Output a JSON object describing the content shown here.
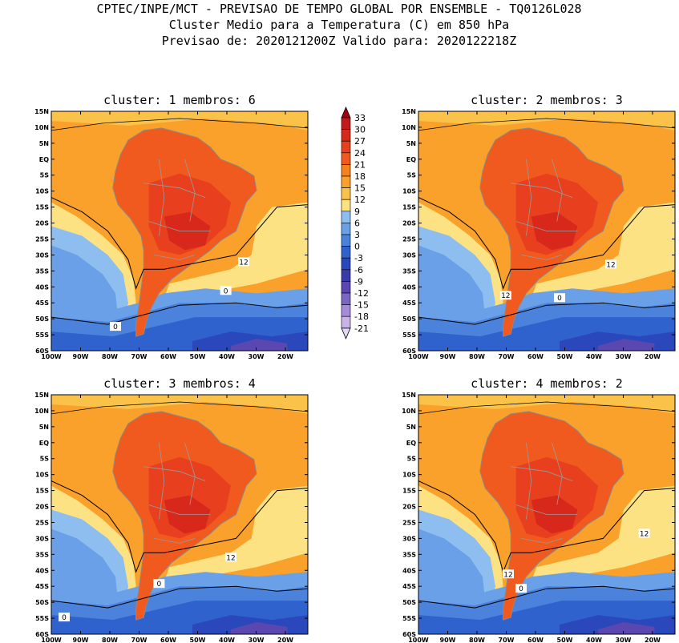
{
  "header": {
    "line1": "CPTEC/INPE/MCT - PREVISAO DE TEMPO GLOBAL POR ENSEMBLE - TQ0126L028",
    "line2": "Cluster Medio para a Temperatura (C) em 850 hPa",
    "line3": "Previsao de: 2020121200Z   Valido para: 2020122218Z"
  },
  "panels": [
    {
      "title": "cluster: 1   membros: 6",
      "contour_labels": [
        "12",
        "0",
        "0"
      ]
    },
    {
      "title": "cluster: 2   membros: 3",
      "contour_labels": [
        "12",
        "12",
        "0"
      ]
    },
    {
      "title": "cluster: 3   membros: 4",
      "contour_labels": [
        "12",
        "0",
        "0"
      ]
    },
    {
      "title": "cluster: 4   membros: 2",
      "contour_labels": [
        "12",
        "12",
        "0"
      ]
    }
  ],
  "axes": {
    "lat_labels": [
      "15N",
      "10N",
      "5N",
      "EQ",
      "5S",
      "10S",
      "15S",
      "20S",
      "25S",
      "30S",
      "35S",
      "40S",
      "45S",
      "50S",
      "55S",
      "60S"
    ],
    "lon_labels": [
      "100W",
      "90W",
      "80W",
      "70W",
      "60W",
      "50W",
      "40W",
      "30W",
      "20W"
    ]
  },
  "colorbar": {
    "levels": [
      "33",
      "30",
      "27",
      "24",
      "21",
      "18",
      "15",
      "12",
      "9",
      "6",
      "3",
      "0",
      "-3",
      "-6",
      "-9",
      "-12",
      "-15",
      "-18",
      "-21"
    ],
    "colors": [
      "#a80010",
      "#c01a1a",
      "#d8281c",
      "#e8401e",
      "#f05a1e",
      "#f58220",
      "#f9a12b",
      "#fbc24a",
      "#fce283",
      "#8ebef0",
      "#6aa0e8",
      "#4a82dc",
      "#2f62cc",
      "#2a48bc",
      "#3a3aa8",
      "#5a48b0",
      "#7c66c4",
      "#a48cd8",
      "#c8b4e6",
      "#e4d8f4"
    ]
  }
}
